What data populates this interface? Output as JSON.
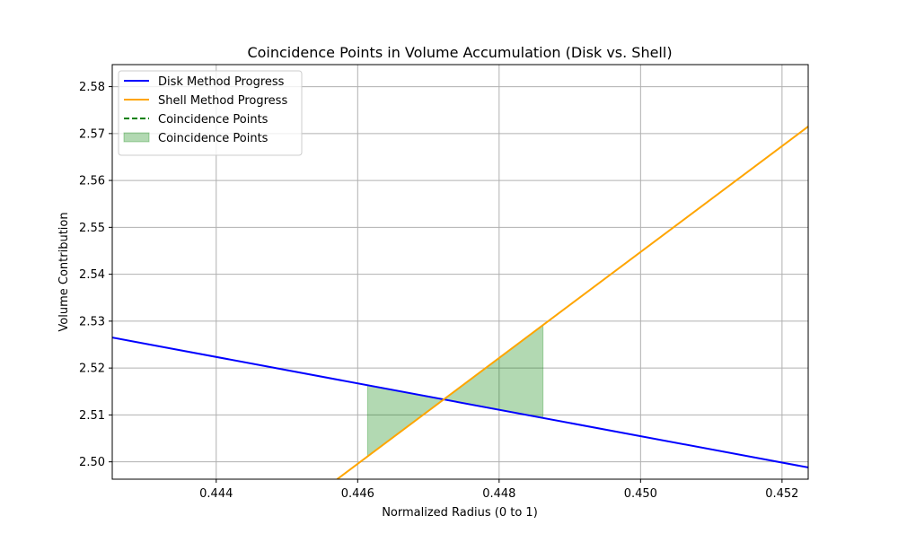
{
  "chart_data": {
    "type": "line",
    "title": "Coincidence Points in Volume Accumulation (Disk vs. Shell)",
    "xlabel": "Normalized Radius (0 to 1)",
    "ylabel": "Volume Contribution",
    "xlim": [
      0.44253,
      0.45237
    ],
    "ylim": [
      2.4963,
      2.5847
    ],
    "x_ticks": [
      0.444,
      0.446,
      0.448,
      0.45,
      0.452
    ],
    "x_tick_labels": [
      "0.444",
      "0.446",
      "0.448",
      "0.450",
      "0.452"
    ],
    "y_ticks": [
      2.5,
      2.51,
      2.52,
      2.53,
      2.54,
      2.55,
      2.56,
      2.57,
      2.58
    ],
    "y_tick_labels": [
      "2.50",
      "2.51",
      "2.52",
      "2.53",
      "2.54",
      "2.55",
      "2.56",
      "2.57",
      "2.58"
    ],
    "grid": true,
    "legend_position": "top-left",
    "series": [
      {
        "name": "Disk Method Progress",
        "color": "#0000ff",
        "style": "solid",
        "points": [
          [
            0.44253,
            2.5265
          ],
          [
            0.45237,
            2.4988
          ]
        ]
      },
      {
        "name": "Shell Method Progress",
        "color": "#ffa500",
        "style": "solid",
        "points": [
          [
            0.44571,
            2.4963
          ],
          [
            0.45237,
            2.5715
          ]
        ]
      },
      {
        "name": "Coincidence Points",
        "color": "#008000",
        "style": "dashed",
        "points": []
      }
    ],
    "fill": {
      "name": "Coincidence Points",
      "color": "#008000",
      "opacity": 0.3,
      "x_start": 0.44614,
      "x_end": 0.44862
    }
  }
}
